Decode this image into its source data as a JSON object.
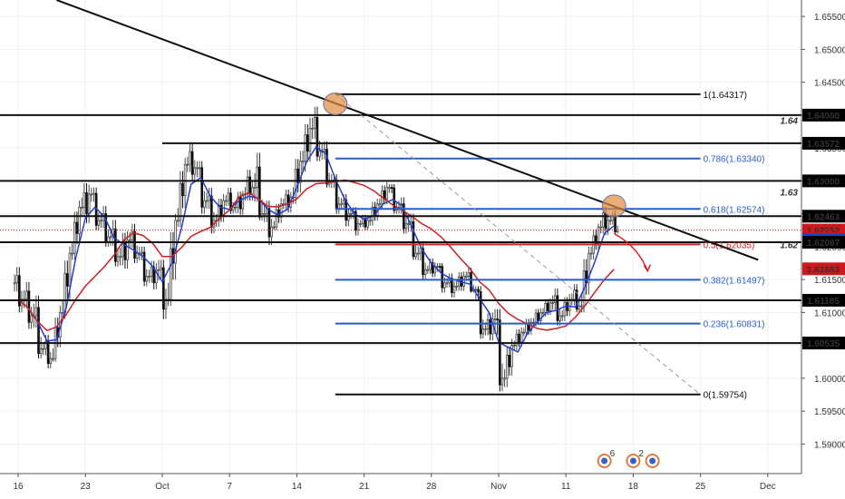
{
  "chart_data": {
    "type": "candlestick",
    "y_axis": {
      "position": "right",
      "ylim": [
        1.5855,
        1.6575
      ],
      "tick_values": [
        1.59,
        1.595,
        1.6,
        1.605,
        1.61,
        1.615,
        1.62,
        1.625,
        1.63,
        1.635,
        1.64,
        1.645,
        1.65,
        1.655
      ],
      "tick_labels": [
        "1.59000",
        "1.59500",
        "1.60000",
        "1.60500",
        "1.61000",
        "1.61500",
        "1.62000",
        "1.62500",
        "1.63000",
        "1.63500",
        "1.64000",
        "1.64500",
        "1.65000",
        "1.65500"
      ]
    },
    "x_axis": {
      "tick_labels": [
        "16",
        "23",
        "Oct",
        "7",
        "14",
        "21",
        "28",
        "Nov",
        "11",
        "18",
        "25",
        "Dec"
      ],
      "tick_day_index": [
        0,
        7,
        15,
        22,
        29,
        36,
        43,
        50,
        57,
        64,
        71,
        78
      ]
    },
    "price_labels": [
      {
        "text": "1.64000",
        "value": 1.64,
        "style": "dark"
      },
      {
        "text": "1.63572",
        "value": 1.63572,
        "style": "dark"
      },
      {
        "text": "1.63000",
        "value": 1.63,
        "style": "dark"
      },
      {
        "text": "1.62463",
        "value": 1.62463,
        "style": "dark"
      },
      {
        "text": "1.62252",
        "value": 1.62252,
        "style": "red"
      },
      {
        "text": "02:23:45",
        "value": 1.6212,
        "style": "red"
      },
      {
        "text": "1.62104",
        "value": 1.62104,
        "style": "blue"
      },
      {
        "text": "1.62067",
        "value": 1.62067,
        "style": "dark"
      },
      {
        "text": "1.61663",
        "value": 1.61663,
        "style": "red"
      },
      {
        "text": "1.61185",
        "value": 1.61185,
        "style": "dark"
      },
      {
        "text": "1.60535",
        "value": 1.60535,
        "style": "dark"
      }
    ],
    "round_number_labels": [
      {
        "text": "1.64",
        "value": 1.6392
      },
      {
        "text": "1.63",
        "value": 1.6283
      },
      {
        "text": "1.62",
        "value": 1.6203
      }
    ],
    "horizontal_levels": [
      {
        "value": 1.64,
        "from_day": 0,
        "to_day": 85
      },
      {
        "value": 1.63572,
        "from_day": 15,
        "to_day": 85
      },
      {
        "value": 1.63,
        "from_day": 0,
        "to_day": 85
      },
      {
        "value": 1.62463,
        "from_day": 0,
        "to_day": 85
      },
      {
        "value": 1.62067,
        "from_day": 0,
        "to_day": 85
      },
      {
        "value": 1.61185,
        "from_day": 0,
        "to_day": 85
      },
      {
        "value": 1.60535,
        "from_day": 0,
        "to_day": 85
      }
    ],
    "fibonacci": {
      "from_day": 33,
      "to_day": 71,
      "levels": [
        {
          "label": "1(1.64317)",
          "value": 1.64317,
          "color": "#111111"
        },
        {
          "label": "0.786(1.63340)",
          "value": 1.6334,
          "color": "#2a5cc8"
        },
        {
          "label": "0.618(1.62574)",
          "value": 1.62574,
          "color": "#2a5cc8"
        },
        {
          "label": "0.5(1.62035)",
          "value": 1.62035,
          "color": "#d32222"
        },
        {
          "label": "0.382(1.61497)",
          "value": 1.61497,
          "color": "#2a5cc8"
        },
        {
          "label": "0.236(1.60831)",
          "value": 1.60831,
          "color": "#2a5cc8"
        },
        {
          "label": "0(1.59754)",
          "value": 1.59754,
          "color": "#111111"
        }
      ]
    },
    "trendline": {
      "start_day": 4,
      "start_value": 1.6575,
      "end_day": 77,
      "end_value": 1.618
    },
    "dashed_line": {
      "start_day": 33,
      "start_value": 1.6432,
      "end_day": 71,
      "end_value": 1.5975
    },
    "highlight_circles": [
      {
        "day": 33,
        "value": 1.6417
      },
      {
        "day": 62,
        "value": 1.6262
      }
    ],
    "projection_arrow": {
      "points": [
        [
          62,
          1.622
        ],
        [
          64.5,
          1.62
        ],
        [
          65.5,
          1.6163
        ]
      ]
    },
    "candles_daily_ohlc": [
      [
        1.6145,
        1.6172,
        1.61,
        1.612
      ],
      [
        1.612,
        1.615,
        1.6075,
        1.6095
      ],
      [
        1.6095,
        1.613,
        1.603,
        1.6045
      ],
      [
        1.6045,
        1.607,
        1.6015,
        1.603
      ],
      [
        1.603,
        1.611,
        1.6025,
        1.61
      ],
      [
        1.61,
        1.62,
        1.609,
        1.619
      ],
      [
        1.619,
        1.627,
        1.618,
        1.626
      ],
      [
        1.626,
        1.63,
        1.622,
        1.628
      ],
      [
        1.628,
        1.629,
        1.6225,
        1.624
      ],
      [
        1.624,
        1.6265,
        1.62,
        1.6215
      ],
      [
        1.6215,
        1.6245,
        1.617,
        1.6185
      ],
      [
        1.6185,
        1.6225,
        1.615,
        1.621
      ],
      [
        1.621,
        1.624,
        1.6175,
        1.619
      ],
      [
        1.619,
        1.62,
        1.614,
        1.6155
      ],
      [
        1.6155,
        1.618,
        1.6125,
        1.6165
      ],
      [
        1.6165,
        1.618,
        1.609,
        1.612
      ],
      [
        1.612,
        1.625,
        1.611,
        1.624
      ],
      [
        1.624,
        1.6335,
        1.623,
        1.6325
      ],
      [
        1.6325,
        1.6365,
        1.63,
        1.632
      ],
      [
        1.632,
        1.633,
        1.625,
        1.627
      ],
      [
        1.627,
        1.629,
        1.622,
        1.624
      ],
      [
        1.624,
        1.628,
        1.6225,
        1.627
      ],
      [
        1.627,
        1.6295,
        1.625,
        1.626
      ],
      [
        1.626,
        1.6285,
        1.6235,
        1.628
      ],
      [
        1.628,
        1.633,
        1.627,
        1.629
      ],
      [
        1.629,
        1.636,
        1.624,
        1.625
      ],
      [
        1.625,
        1.627,
        1.62,
        1.623
      ],
      [
        1.623,
        1.6275,
        1.6225,
        1.6265
      ],
      [
        1.6265,
        1.629,
        1.6245,
        1.6275
      ],
      [
        1.6275,
        1.635,
        1.6265,
        1.633
      ],
      [
        1.633,
        1.64,
        1.631,
        1.638
      ],
      [
        1.638,
        1.642,
        1.633,
        1.6345
      ],
      [
        1.6345,
        1.636,
        1.629,
        1.63
      ],
      [
        1.63,
        1.631,
        1.625,
        1.6265
      ],
      [
        1.6265,
        1.628,
        1.623,
        1.625
      ],
      [
        1.625,
        1.626,
        1.6215,
        1.6235
      ],
      [
        1.6235,
        1.625,
        1.622,
        1.624
      ],
      [
        1.624,
        1.6275,
        1.623,
        1.6265
      ],
      [
        1.6265,
        1.63,
        1.6255,
        1.629
      ],
      [
        1.629,
        1.6295,
        1.625,
        1.626
      ],
      [
        1.626,
        1.6275,
        1.622,
        1.6235
      ],
      [
        1.6235,
        1.625,
        1.618,
        1.619
      ],
      [
        1.619,
        1.621,
        1.615,
        1.6165
      ],
      [
        1.6165,
        1.6185,
        1.615,
        1.617
      ],
      [
        1.617,
        1.6175,
        1.613,
        1.6145
      ],
      [
        1.6145,
        1.616,
        1.612,
        1.614
      ],
      [
        1.614,
        1.6165,
        1.6125,
        1.6155
      ],
      [
        1.6155,
        1.617,
        1.613,
        1.6135
      ],
      [
        1.6135,
        1.614,
        1.606,
        1.6075
      ],
      [
        1.6075,
        1.61,
        1.6045,
        1.609
      ],
      [
        1.609,
        1.6105,
        1.598,
        1.6
      ],
      [
        1.6,
        1.606,
        1.5985,
        1.605
      ],
      [
        1.605,
        1.608,
        1.604,
        1.607
      ],
      [
        1.607,
        1.6095,
        1.606,
        1.6085
      ],
      [
        1.6085,
        1.611,
        1.6075,
        1.61
      ],
      [
        1.61,
        1.6125,
        1.609,
        1.6115
      ],
      [
        1.6115,
        1.614,
        1.608,
        1.6095
      ],
      [
        1.6095,
        1.613,
        1.6085,
        1.612
      ],
      [
        1.612,
        1.615,
        1.61,
        1.611
      ],
      [
        1.611,
        1.62,
        1.61,
        1.619
      ],
      [
        1.619,
        1.6235,
        1.618,
        1.623
      ],
      [
        1.623,
        1.627,
        1.6215,
        1.624
      ],
      [
        1.624,
        1.6258,
        1.622,
        1.6225
      ]
    ],
    "moving_averages": [
      {
        "color": "#1f3fd1",
        "period": 3
      },
      {
        "color": "#cc1f1f",
        "period": 8
      }
    ],
    "event_markers": [
      {
        "day": 61,
        "count": "6"
      },
      {
        "day": 64,
        "count": "2"
      },
      {
        "day": 66,
        "count": ""
      }
    ]
  }
}
